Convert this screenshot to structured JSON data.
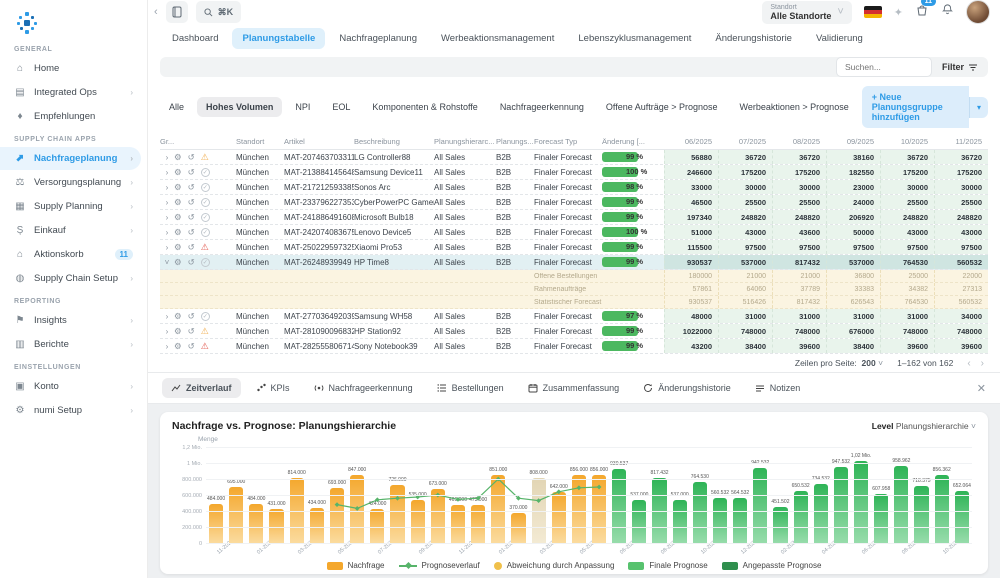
{
  "topbar": {
    "search_shortcut": "⌘K",
    "standort_label": "Standort",
    "standort_value": "Alle Standorte",
    "cart_badge": "11"
  },
  "tabs": [
    {
      "label": "Dashboard",
      "active": false
    },
    {
      "label": "Planungstabelle",
      "active": true
    },
    {
      "label": "Nachfrageplanung",
      "active": false
    },
    {
      "label": "Werbeaktionsmanagement",
      "active": false
    },
    {
      "label": "Lebenszyklusmanagement",
      "active": false
    },
    {
      "label": "Änderungshistorie",
      "active": false
    },
    {
      "label": "Validierung",
      "active": false
    }
  ],
  "toolbar": {
    "search_placeholder": "Suchen...",
    "filter_label": "Filter"
  },
  "chips": [
    {
      "label": "Alle",
      "active": false
    },
    {
      "label": "Hohes Volumen",
      "active": true
    },
    {
      "label": "NPI",
      "active": false
    },
    {
      "label": "EOL",
      "active": false
    },
    {
      "label": "Komponenten & Rohstoffe",
      "active": false
    },
    {
      "label": "Nachfrageerkennung",
      "active": false
    },
    {
      "label": "Offene Aufträge > Prognose",
      "active": false
    },
    {
      "label": "Werbeaktionen > Prognose",
      "active": false
    }
  ],
  "add_group_label": "+  Neue Planungsgruppe hinzufügen",
  "sidebar": {
    "sections": [
      {
        "label": "GENERAL",
        "items": [
          {
            "icon": "home-icon",
            "glyph": "⌂",
            "label": "Home",
            "chevron": false,
            "active": false,
            "badge": ""
          },
          {
            "icon": "integrated-ops-icon",
            "glyph": "▤",
            "label": "Integrated Ops",
            "chevron": true,
            "active": false,
            "badge": ""
          },
          {
            "icon": "recommendations-icon",
            "glyph": "♦",
            "label": "Empfehlungen",
            "chevron": false,
            "active": false,
            "badge": ""
          }
        ]
      },
      {
        "label": "SUPPLY CHAIN APPS",
        "items": [
          {
            "icon": "demand-planning-icon",
            "glyph": "⬈",
            "label": "Nachfrageplanung",
            "chevron": true,
            "active": true,
            "badge": ""
          },
          {
            "icon": "supply-planning-icon",
            "glyph": "⚖",
            "label": "Versorgungsplanung",
            "chevron": true,
            "active": false,
            "badge": ""
          },
          {
            "icon": "supply-plan-icon",
            "glyph": "▦",
            "label": "Supply Planning",
            "chevron": true,
            "active": false,
            "badge": ""
          },
          {
            "icon": "purchasing-icon",
            "glyph": "Ș",
            "label": "Einkauf",
            "chevron": true,
            "active": false,
            "badge": ""
          },
          {
            "icon": "action-cart-icon",
            "glyph": "⌂",
            "label": "Aktionskorb",
            "chevron": false,
            "active": false,
            "badge": "11"
          },
          {
            "icon": "supply-chain-setup-icon",
            "glyph": "◍",
            "label": "Supply Chain Setup",
            "chevron": true,
            "active": false,
            "badge": ""
          }
        ]
      },
      {
        "label": "REPORTING",
        "items": [
          {
            "icon": "insights-icon",
            "glyph": "⚑",
            "label": "Insights",
            "chevron": true,
            "active": false,
            "badge": ""
          },
          {
            "icon": "reports-icon",
            "glyph": "▥",
            "label": "Berichte",
            "chevron": true,
            "active": false,
            "badge": ""
          }
        ]
      },
      {
        "label": "EINSTELLUNGEN",
        "items": [
          {
            "icon": "account-icon",
            "glyph": "▣",
            "label": "Konto",
            "chevron": true,
            "active": false,
            "badge": ""
          },
          {
            "icon": "numi-setup-icon",
            "glyph": "⚙",
            "label": "numi Setup",
            "chevron": true,
            "active": false,
            "badge": ""
          }
        ]
      }
    ]
  },
  "table": {
    "headers": [
      "Gr...",
      "",
      "Standort",
      "Artikel",
      "Beschreibung",
      "Planungshierarc...",
      "Planungs...",
      "Forecast Typ",
      "Änderung [...",
      "06/2025",
      "07/2025",
      "08/2025",
      "09/2025",
      "10/2025",
      "11/2025"
    ],
    "rows": [
      {
        "type": "main",
        "status": "warn",
        "standort": "München",
        "artikel": "MAT-207463703311",
        "beschreibung": "LG Controller88",
        "hierarchie": "All Sales",
        "gruppe": "B2B",
        "forecast_typ": "Finaler Forecast",
        "aenderung": "99 %",
        "values": [
          56880,
          36720,
          36720,
          38160,
          36720,
          36720
        ]
      },
      {
        "type": "main",
        "status": "ok",
        "standort": "München",
        "artikel": "MAT-213884145648",
        "beschreibung": "Samsung Device11",
        "hierarchie": "All Sales",
        "gruppe": "B2B",
        "forecast_typ": "Finaler Forecast",
        "aenderung": "100 %",
        "values": [
          246600,
          175200,
          175200,
          182550,
          175200,
          175200
        ]
      },
      {
        "type": "main",
        "status": "ok",
        "standort": "München",
        "artikel": "MAT-217212593385",
        "beschreibung": "Sonos Arc",
        "hierarchie": "All Sales",
        "gruppe": "B2B",
        "forecast_typ": "Finaler Forecast",
        "aenderung": "98 %",
        "values": [
          33000,
          30000,
          30000,
          23000,
          30000,
          30000
        ]
      },
      {
        "type": "main",
        "status": "ok",
        "standort": "München",
        "artikel": "MAT-233796227353",
        "beschreibung": "CyberPowerPC Gamer Su",
        "hierarchie": "All Sales",
        "gruppe": "B2B",
        "forecast_typ": "Finaler Forecast",
        "aenderung": "99 %",
        "values": [
          46500,
          25500,
          25500,
          24000,
          25500,
          25500
        ]
      },
      {
        "type": "main",
        "status": "ok",
        "standort": "München",
        "artikel": "MAT-241886491608",
        "beschreibung": "Microsoft Bulb18",
        "hierarchie": "All Sales",
        "gruppe": "B2B",
        "forecast_typ": "Finaler Forecast",
        "aenderung": "99 %",
        "values": [
          197340,
          248820,
          248820,
          206920,
          248820,
          248820
        ]
      },
      {
        "type": "main",
        "status": "ok",
        "standort": "München",
        "artikel": "MAT-242074083675",
        "beschreibung": "Lenovo Device5",
        "hierarchie": "All Sales",
        "gruppe": "B2B",
        "forecast_typ": "Finaler Forecast",
        "aenderung": "100 %",
        "values": [
          51000,
          43000,
          43600,
          50000,
          43000,
          43000
        ]
      },
      {
        "type": "main",
        "status": "alert",
        "standort": "München",
        "artikel": "MAT-250229597325",
        "beschreibung": "Xiaomi Pro53",
        "hierarchie": "All Sales",
        "gruppe": "B2B",
        "forecast_typ": "Finaler Forecast",
        "aenderung": "99 %",
        "values": [
          115500,
          97500,
          97500,
          97500,
          97500,
          97500
        ]
      },
      {
        "type": "main",
        "status": "ok",
        "expanded": true,
        "standort": "München",
        "artikel": "MAT-26248939949",
        "beschreibung": "HP Time8",
        "hierarchie": "All Sales",
        "gruppe": "B2B",
        "forecast_typ": "Finaler Forecast",
        "aenderung": "99 %",
        "values": [
          930537,
          537000,
          817432,
          537000,
          764530,
          560532
        ]
      },
      {
        "type": "sub",
        "label": "Offene Bestellungen",
        "values": [
          180000,
          21000,
          21000,
          36800,
          25000,
          22000
        ]
      },
      {
        "type": "sub",
        "label": "Rahmenaufträge",
        "values": [
          57861,
          64060,
          37789,
          33383,
          34382,
          27313
        ]
      },
      {
        "type": "sub",
        "label": "Statistischer Forecast",
        "values": [
          930537,
          516426,
          817432,
          626543,
          764530,
          560532
        ]
      },
      {
        "type": "main",
        "status": "ok",
        "standort": "München",
        "artikel": "MAT-277036492039",
        "beschreibung": "Samsung WH58",
        "hierarchie": "All Sales",
        "gruppe": "B2B",
        "forecast_typ": "Finaler Forecast",
        "aenderung": "97 %",
        "values": [
          48000,
          31000,
          31000,
          31000,
          31000,
          34000
        ]
      },
      {
        "type": "main",
        "status": "warn",
        "standort": "München",
        "artikel": "MAT-281090096832",
        "beschreibung": "HP Station92",
        "hierarchie": "All Sales",
        "gruppe": "B2B",
        "forecast_typ": "Finaler Forecast",
        "aenderung": "99 %",
        "values": [
          1022000,
          748000,
          748000,
          676000,
          748000,
          748000
        ]
      },
      {
        "type": "main",
        "status": "alert",
        "standort": "München",
        "artikel": "MAT-282555806714",
        "beschreibung": "Sony Notebook39",
        "hierarchie": "All Sales",
        "gruppe": "B2B",
        "forecast_typ": "Finaler Forecast",
        "aenderung": "99 %",
        "values": [
          43200,
          38400,
          39600,
          38400,
          39600,
          39600
        ]
      }
    ]
  },
  "pagination": {
    "label": "Zeilen pro Seite:",
    "per_page": "200",
    "range": "1–162 von 162"
  },
  "bottom_tabs": [
    {
      "icon": "line-chart-icon",
      "label": "Zeitverlauf",
      "active": true
    },
    {
      "icon": "kpi-icon",
      "label": "KPIs",
      "active": false
    },
    {
      "icon": "signal-icon",
      "label": "Nachfrageerkennung",
      "active": false
    },
    {
      "icon": "orders-list-icon",
      "label": "Bestellungen",
      "active": false
    },
    {
      "icon": "summary-calendar-icon",
      "label": "Zusammenfassung",
      "active": false
    },
    {
      "icon": "history-icon",
      "label": "Änderungshistorie",
      "active": false
    },
    {
      "icon": "notes-icon",
      "label": "Notizen",
      "active": false
    }
  ],
  "chart": {
    "title": "Nachfrage vs. Prognose: Planungshierarchie",
    "level_label": "Level",
    "level_value": "Planungshierarchie",
    "y_axis_label": "Menge"
  },
  "chart_data": {
    "type": "bar",
    "title": "Nachfrage vs. Prognose: Planungshierarchie",
    "ylabel": "Menge",
    "ylim": [
      0,
      1200000
    ],
    "y_ticks": [
      "1,2 Mio.",
      "1 Mio.",
      "800.000",
      "600.000",
      "400.000",
      "200.000",
      "0"
    ],
    "legend_position": "bottom",
    "series": [
      {
        "name": "Nachfrage",
        "type": "bar",
        "color": "#f4a72c",
        "months": [
          "11-2023",
          "12-2023",
          "01-2024",
          "02-2024",
          "03-2024",
          "04-2024",
          "05-2024",
          "06-2024",
          "07-2024",
          "08-2024",
          "09-2024",
          "10-2024",
          "11-2024",
          "12-2024",
          "01-2025",
          "02-2025",
          "03-2025",
          "04-2025",
          "05-2025",
          "06-2025"
        ],
        "values": [
          484000,
          695000,
          484000,
          431000,
          814000,
          434000,
          693000,
          847000,
          424000,
          726000,
          535000,
          673000,
          469000,
          473000,
          851000,
          370000,
          808000,
          642000,
          856000,
          856000
        ],
        "adjusted_index": 16
      },
      {
        "name": "Prognoseverlauf",
        "type": "line",
        "color": "#57b46a",
        "points_from_index": 6,
        "values": [
          480000,
          432000,
          540000,
          560000,
          575000,
          600000,
          545000,
          560000,
          800000,
          560000,
          530000,
          640000,
          690000,
          700000
        ]
      },
      {
        "name": "Finale Prognose",
        "type": "bar",
        "color": "#2eb456",
        "months": [
          "06-2025",
          "07-2025",
          "08-2025",
          "09-2025",
          "10-2025",
          "11-2025",
          "12-2025",
          "01-2026",
          "02-2026",
          "03-2026",
          "04-2026",
          "05-2026",
          "06-2026",
          "07-2026",
          "08-2026",
          "09-2026",
          "10-2026",
          "11-2026"
        ],
        "values": [
          930537,
          537000,
          817432,
          537000,
          764530,
          560532,
          564532,
          942532,
          451502,
          650532,
          734532,
          947532,
          1020000,
          607958,
          958962,
          718375,
          856362,
          652064
        ]
      }
    ],
    "legend": [
      {
        "label": "Nachfrage",
        "swatch": "rect",
        "color": "#f4a72c"
      },
      {
        "label": "Prognoseverlauf",
        "swatch": "line",
        "color": "#57b46a"
      },
      {
        "label": "Abweichung durch Anpassung",
        "swatch": "circle",
        "color": "#f0c04a"
      },
      {
        "label": "Finale Prognose",
        "swatch": "rect",
        "color": "#57c26e"
      },
      {
        "label": "Angepasste Prognose",
        "swatch": "rect",
        "color": "#2f8f4e"
      }
    ]
  }
}
